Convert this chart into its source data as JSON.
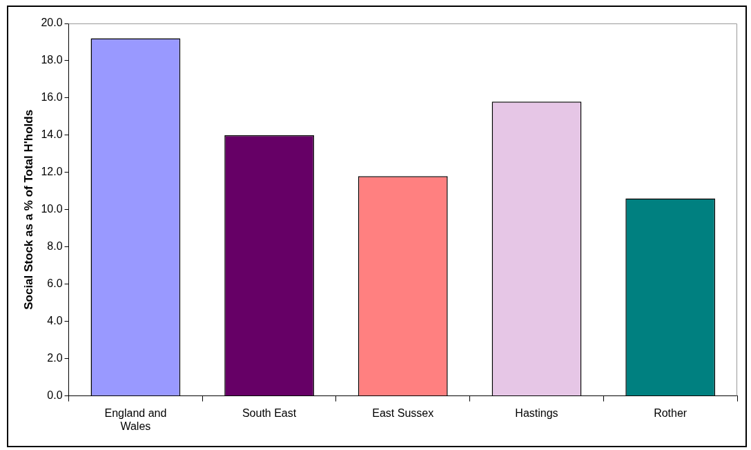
{
  "chart_data": {
    "type": "bar",
    "ylabel": "Social Stock as a % of Total H'holds",
    "categories": [
      "England and Wales",
      "South East",
      "East Sussex",
      "Hastings",
      "Rother"
    ],
    "values": [
      19.2,
      14.0,
      11.8,
      15.8,
      10.6
    ],
    "colors": [
      "#9999ff",
      "#660066",
      "#ff8080",
      "#e6c6e6",
      "#008080"
    ],
    "ylim": [
      0,
      20
    ],
    "yticks": [
      {
        "value": 0,
        "label": "0.0"
      },
      {
        "value": 2,
        "label": "2.0"
      },
      {
        "value": 4,
        "label": "4.0"
      },
      {
        "value": 6,
        "label": "6.0"
      },
      {
        "value": 8,
        "label": "8.0"
      },
      {
        "value": 10,
        "label": "10.0"
      },
      {
        "value": 12,
        "label": "12.0"
      },
      {
        "value": 14,
        "label": "14.0"
      },
      {
        "value": 16,
        "label": "16.0"
      },
      {
        "value": 18,
        "label": "18.0"
      },
      {
        "value": 20,
        "label": "20.0"
      }
    ],
    "legend": false
  }
}
